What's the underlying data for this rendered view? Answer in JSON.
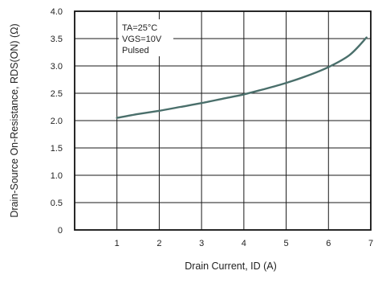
{
  "chart_data": {
    "type": "line",
    "title": "",
    "xlabel": "Drain Current, ID (A)",
    "ylabel": "Drain-Source On-Resistance, RDS(ON) (Ω)",
    "xlim": [
      0,
      7
    ],
    "ylim": [
      0,
      4.0
    ],
    "x_ticks": [
      "1",
      "2",
      "3",
      "4",
      "5",
      "6",
      "7"
    ],
    "y_ticks": [
      "0",
      "0.5",
      "1.0",
      "1.5",
      "2.0",
      "2.5",
      "3.0",
      "3.5",
      "4.0"
    ],
    "grid": true,
    "annotations": [
      "TA=25°C",
      "VGS=10V",
      "Pulsed"
    ],
    "series": [
      {
        "color": "#4a6f6b",
        "x": [
          1.0,
          1.5,
          2.0,
          2.5,
          3.0,
          3.5,
          4.0,
          4.5,
          5.0,
          5.5,
          6.0,
          6.5,
          6.9
        ],
        "y": [
          2.05,
          2.12,
          2.18,
          2.25,
          2.32,
          2.4,
          2.48,
          2.58,
          2.69,
          2.82,
          2.98,
          3.2,
          3.52
        ]
      }
    ]
  }
}
